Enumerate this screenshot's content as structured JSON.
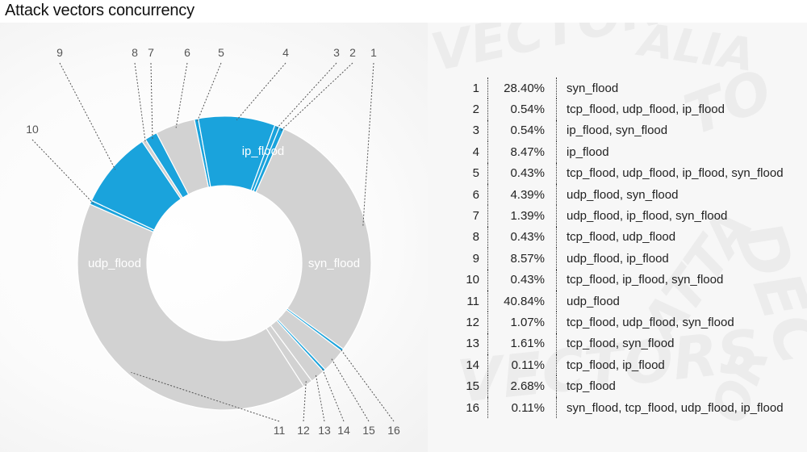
{
  "header": {
    "title": "Attack vectors concurrency"
  },
  "colors": {
    "highlight": "#1aa3dc",
    "base": "#d2d2d2",
    "separator": "#ffffff"
  },
  "chart_data": {
    "type": "pie",
    "variant": "donut",
    "title": "Attack vectors concurrency",
    "highlighted_vector": "ip_flood",
    "segment_labels": [
      "ip_flood",
      "syn_flood",
      "udp_flood"
    ],
    "callout_order": [
      "1",
      "2",
      "3",
      "4",
      "5",
      "6",
      "7",
      "8",
      "9",
      "10",
      "11",
      "12",
      "13",
      "14",
      "15",
      "16"
    ],
    "slices": [
      {
        "id": "1",
        "percent": 28.4,
        "vectors": "syn_flood",
        "highlighted": false
      },
      {
        "id": "2",
        "percent": 0.54,
        "vectors": "tcp_flood, udp_flood, ip_flood",
        "highlighted": true
      },
      {
        "id": "3",
        "percent": 0.54,
        "vectors": "ip_flood, syn_flood",
        "highlighted": true
      },
      {
        "id": "4",
        "percent": 8.47,
        "vectors": "ip_flood",
        "highlighted": true
      },
      {
        "id": "5",
        "percent": 0.43,
        "vectors": "tcp_flood, udp_flood, ip_flood, syn_flood",
        "highlighted": true
      },
      {
        "id": "6",
        "percent": 4.39,
        "vectors": "udp_flood, syn_flood",
        "highlighted": false
      },
      {
        "id": "7",
        "percent": 1.39,
        "vectors": "udp_flood, ip_flood, syn_flood",
        "highlighted": true
      },
      {
        "id": "8",
        "percent": 0.43,
        "vectors": "tcp_flood, udp_flood",
        "highlighted": false
      },
      {
        "id": "9",
        "percent": 8.57,
        "vectors": "udp_flood, ip_flood",
        "highlighted": true
      },
      {
        "id": "10",
        "percent": 0.43,
        "vectors": "tcp_flood, ip_flood, syn_flood",
        "highlighted": true
      },
      {
        "id": "11",
        "percent": 40.84,
        "vectors": "udp_flood",
        "highlighted": false
      },
      {
        "id": "12",
        "percent": 1.07,
        "vectors": "tcp_flood, udp_flood, syn_flood",
        "highlighted": false
      },
      {
        "id": "13",
        "percent": 1.61,
        "vectors": "tcp_flood, syn_flood",
        "highlighted": false
      },
      {
        "id": "14",
        "percent": 0.11,
        "vectors": "tcp_flood, ip_flood",
        "highlighted": true
      },
      {
        "id": "15",
        "percent": 2.68,
        "vectors": "tcp_flood",
        "highlighted": false
      },
      {
        "id": "16",
        "percent": 0.11,
        "vectors": "syn_flood, tcp_flood, udp_flood, ip_flood",
        "highlighted": true
      }
    ],
    "legend": [
      {
        "id": "1",
        "percent_label": "28.40%",
        "vectors": "syn_flood"
      },
      {
        "id": "2",
        "percent_label": "0.54%",
        "vectors": "tcp_flood, udp_flood, ip_flood"
      },
      {
        "id": "3",
        "percent_label": "0.54%",
        "vectors": "ip_flood, syn_flood"
      },
      {
        "id": "4",
        "percent_label": "8.47%",
        "vectors": "ip_flood"
      },
      {
        "id": "5",
        "percent_label": "0.43%",
        "vectors": "tcp_flood, udp_flood, ip_flood, syn_flood"
      },
      {
        "id": "6",
        "percent_label": "4.39%",
        "vectors": "udp_flood, syn_flood"
      },
      {
        "id": "7",
        "percent_label": "1.39%",
        "vectors": "udp_flood, ip_flood, syn_flood"
      },
      {
        "id": "8",
        "percent_label": "0.43%",
        "vectors": "tcp_flood, udp_flood"
      },
      {
        "id": "9",
        "percent_label": "8.57%",
        "vectors": "udp_flood, ip_flood"
      },
      {
        "id": "10",
        "percent_label": "0.43%",
        "vectors": "tcp_flood, ip_flood, syn_flood"
      },
      {
        "id": "11",
        "percent_label": "40.84%",
        "vectors": "udp_flood"
      },
      {
        "id": "12",
        "percent_label": "1.07%",
        "vectors": "tcp_flood, udp_flood, syn_flood"
      },
      {
        "id": "13",
        "percent_label": "1.61%",
        "vectors": "tcp_flood, syn_flood"
      },
      {
        "id": "14",
        "percent_label": "0.11%",
        "vectors": "tcp_flood, ip_flood"
      },
      {
        "id": "15",
        "percent_label": "2.68%",
        "vectors": "tcp_flood"
      },
      {
        "id": "16",
        "percent_label": "0.11%",
        "vectors": "syn_flood, tcp_flood, udp_flood, ip_flood"
      }
    ]
  }
}
